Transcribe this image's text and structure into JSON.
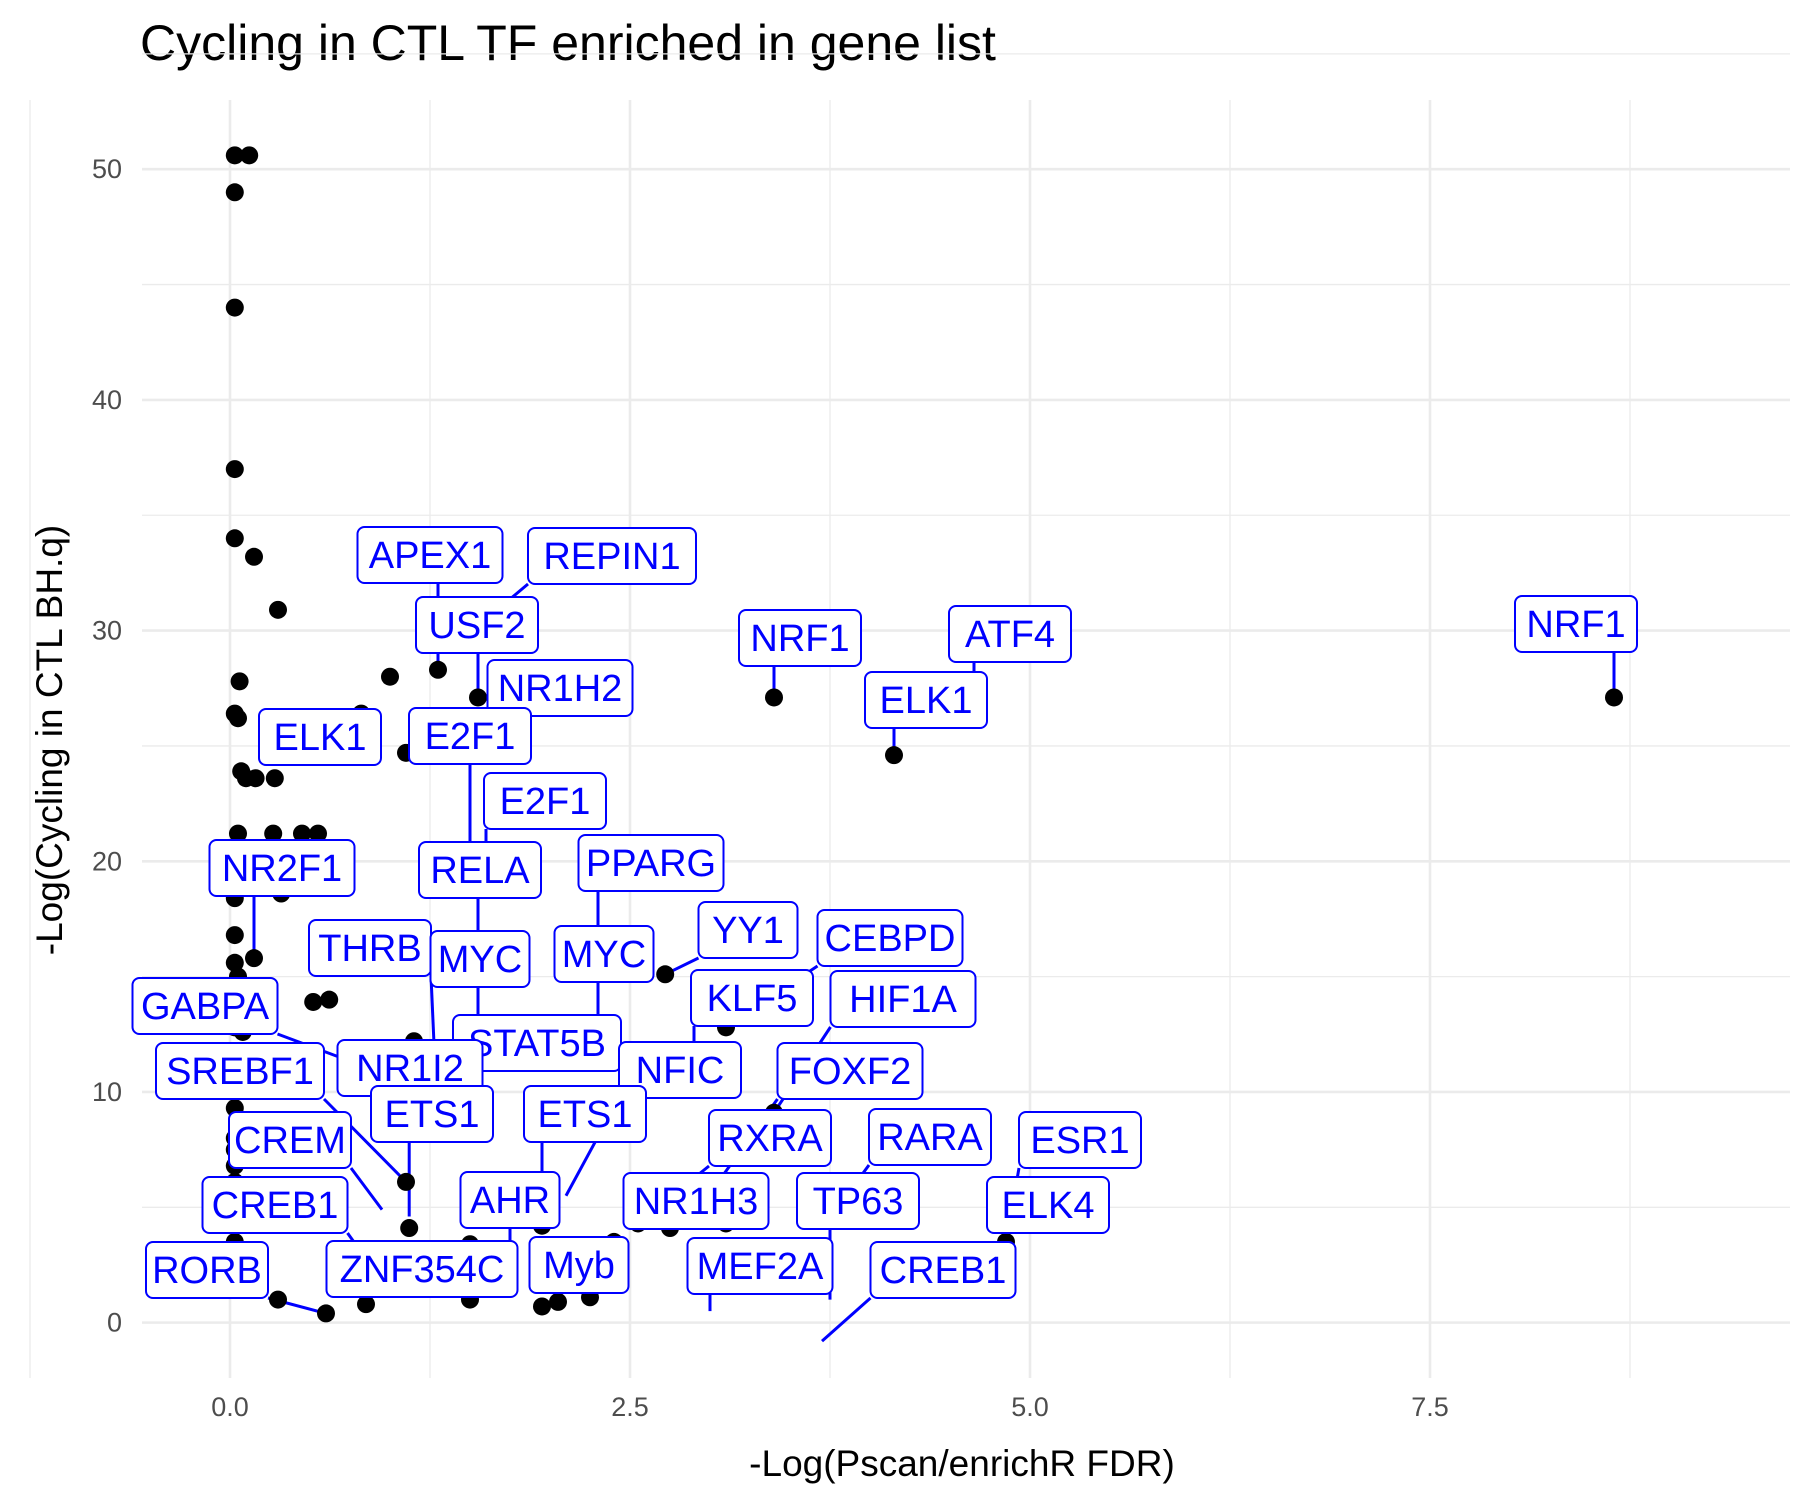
{
  "chart_data": {
    "type": "scatter",
    "title": "Cycling in CTL TF enriched in gene list",
    "xlabel": "-Log(Pscan/enrichR FDR)",
    "ylabel": "-Log(Cycling in CTL BH.q)",
    "xlim": [
      -0.55,
      9.75
    ],
    "ylim": [
      -2.4,
      53
    ],
    "x_ticks": [
      0.0,
      2.5,
      5.0,
      7.5
    ],
    "x_tick_labels": [
      "0.0",
      "2.5",
      "5.0",
      "7.5"
    ],
    "y_ticks": [
      0,
      10,
      20,
      30,
      40,
      50
    ],
    "y_tick_labels": [
      "0",
      "10",
      "20",
      "30",
      "40",
      "50"
    ],
    "grid": true,
    "point_color": "#000000",
    "label_color": "#0000ff",
    "points": [
      [
        0.03,
        50.6
      ],
      [
        0.12,
        50.6
      ],
      [
        0.03,
        49.0
      ],
      [
        0.03,
        44.0
      ],
      [
        0.03,
        37.0
      ],
      [
        0.03,
        34.0
      ],
      [
        0.15,
        33.2
      ],
      [
        0.3,
        30.9
      ],
      [
        0.06,
        27.8
      ],
      [
        0.03,
        26.4
      ],
      [
        0.05,
        26.2
      ],
      [
        0.3,
        24.7
      ],
      [
        0.07,
        23.9
      ],
      [
        0.1,
        23.6
      ],
      [
        0.16,
        23.6
      ],
      [
        0.28,
        23.6
      ],
      [
        0.05,
        21.2
      ],
      [
        0.27,
        21.2
      ],
      [
        0.45,
        21.2
      ],
      [
        0.55,
        21.2
      ],
      [
        0.2,
        20.0
      ],
      [
        0.03,
        20.0
      ],
      [
        0.03,
        19.5
      ],
      [
        0.03,
        19.0
      ],
      [
        0.03,
        18.4
      ],
      [
        0.3,
        19.4
      ],
      [
        0.32,
        18.6
      ],
      [
        0.62,
        20.0
      ],
      [
        0.68,
        19.4
      ],
      [
        0.03,
        16.8
      ],
      [
        0.03,
        15.6
      ],
      [
        0.05,
        15.0
      ],
      [
        0.03,
        14.5
      ],
      [
        0.15,
        15.8
      ],
      [
        0.52,
        13.9
      ],
      [
        0.62,
        14.0
      ],
      [
        0.03,
        13.2
      ],
      [
        0.03,
        12.8
      ],
      [
        0.08,
        12.6
      ],
      [
        0.18,
        13.2
      ],
      [
        0.03,
        9.3
      ],
      [
        0.03,
        8.0
      ],
      [
        0.03,
        7.5
      ],
      [
        0.03,
        6.8
      ],
      [
        0.03,
        6.1
      ],
      [
        0.03,
        5.5
      ],
      [
        0.03,
        5.0
      ],
      [
        0.03,
        4.5
      ],
      [
        0.03,
        3.5
      ],
      [
        0.03,
        3.0
      ],
      [
        0.08,
        2.5
      ],
      [
        0.15,
        2.0
      ],
      [
        0.3,
        1.0
      ],
      [
        0.6,
        0.4
      ],
      [
        0.95,
        1.8
      ],
      [
        0.85,
        0.8
      ],
      [
        1.2,
        1.5
      ],
      [
        0.6,
        26.0
      ],
      [
        0.68,
        24.7
      ],
      [
        0.82,
        26.4
      ],
      [
        1.0,
        28.0
      ],
      [
        1.1,
        24.7
      ],
      [
        1.3,
        28.3
      ],
      [
        1.55,
        30.2
      ],
      [
        1.55,
        27.1
      ],
      [
        1.55,
        25.2
      ],
      [
        1.5,
        20.3
      ],
      [
        1.6,
        20.3
      ],
      [
        1.15,
        12.2
      ],
      [
        1.2,
        11.6
      ],
      [
        1.28,
        11.3
      ],
      [
        1.55,
        11.5
      ],
      [
        1.5,
        10.6
      ],
      [
        1.15,
        10.3
      ],
      [
        1.1,
        6.1
      ],
      [
        1.12,
        4.1
      ],
      [
        1.5,
        3.4
      ],
      [
        1.5,
        1.0
      ],
      [
        1.6,
        2.0
      ],
      [
        1.95,
        4.2
      ],
      [
        1.95,
        0.7
      ],
      [
        2.05,
        0.9
      ],
      [
        2.25,
        1.1
      ],
      [
        2.4,
        3.5
      ],
      [
        2.3,
        11.5
      ],
      [
        2.3,
        16.0
      ],
      [
        2.72,
        15.1
      ],
      [
        2.55,
        4.3
      ],
      [
        2.75,
        4.1
      ],
      [
        2.9,
        10.5
      ],
      [
        3.0,
        5.6
      ],
      [
        3.1,
        4.3
      ],
      [
        3.1,
        12.8
      ],
      [
        3.4,
        9.1
      ],
      [
        3.4,
        27.1
      ],
      [
        4.15,
        24.6
      ],
      [
        4.65,
        27.5
      ],
      [
        4.85,
        3.5
      ],
      [
        4.85,
        2.3
      ],
      [
        8.65,
        27.1
      ]
    ],
    "labels": [
      {
        "text": "APEX1",
        "x": 1.3,
        "y": 28.3
      },
      {
        "text": "REPIN1",
        "x": 1.55,
        "y": 30.2
      },
      {
        "text": "USF2",
        "x": 1.55,
        "y": 27.1
      },
      {
        "text": "NR1H2",
        "x": 1.55,
        "y": 25.2
      },
      {
        "text": "NRF1",
        "x": 3.4,
        "y": 27.1
      },
      {
        "text": "ATF4",
        "x": 4.65,
        "y": 27.5
      },
      {
        "text": "NRF1",
        "x": 8.65,
        "y": 27.1
      },
      {
        "text": "ELK1",
        "x": 4.15,
        "y": 24.6
      },
      {
        "text": "ELK1",
        "x": 0.3,
        "y": 23.6
      },
      {
        "text": "E2F1",
        "x": 1.5,
        "y": 20.3
      },
      {
        "text": "E2F1",
        "x": 1.6,
        "y": 20.3
      },
      {
        "text": "NR2F1",
        "x": 0.15,
        "y": 15.8
      },
      {
        "text": "RELA",
        "x": 1.55,
        "y": 14.5
      },
      {
        "text": "PPARG",
        "x": 2.3,
        "y": 16.0
      },
      {
        "text": "YY1",
        "x": 2.72,
        "y": 15.1
      },
      {
        "text": "CEBPD",
        "x": 3.1,
        "y": 12.8
      },
      {
        "text": "THRB",
        "x": 1.28,
        "y": 11.3
      },
      {
        "text": "MYC",
        "x": 1.55,
        "y": 11.5
      },
      {
        "text": "MYC",
        "x": 2.3,
        "y": 11.5
      },
      {
        "text": "KLF5",
        "x": 2.9,
        "y": 10.5
      },
      {
        "text": "HIF1A",
        "x": 3.4,
        "y": 9.1
      },
      {
        "text": "GABPA",
        "x": 1.15,
        "y": 10.3
      },
      {
        "text": "STAT5B",
        "x": 1.5,
        "y": 10.6
      },
      {
        "text": "NR1I2",
        "x": 1.1,
        "y": 8.5
      },
      {
        "text": "NFIC",
        "x": 2.1,
        "y": 5.5
      },
      {
        "text": "FOXF2",
        "x": 3.0,
        "y": 5.6
      },
      {
        "text": "SREBF1",
        "x": 1.1,
        "y": 6.1
      },
      {
        "text": "ETS1",
        "x": 1.12,
        "y": 4.6
      },
      {
        "text": "ETS1",
        "x": 1.95,
        "y": 4.2
      },
      {
        "text": "RXRA",
        "x": 2.55,
        "y": 4.3
      },
      {
        "text": "RARA",
        "x": 3.8,
        "y": 5.0
      },
      {
        "text": "ESR1",
        "x": 4.85,
        "y": 3.5
      },
      {
        "text": "CREM",
        "x": 0.95,
        "y": 4.9
      },
      {
        "text": "AHR",
        "x": 1.75,
        "y": 2.0
      },
      {
        "text": "NR1H3",
        "x": 2.75,
        "y": 4.1
      },
      {
        "text": "TP63",
        "x": 3.75,
        "y": 1.0
      },
      {
        "text": "ELK4",
        "x": 4.85,
        "y": 2.3
      },
      {
        "text": "CREB1",
        "x": 0.95,
        "y": 1.8
      },
      {
        "text": "RORB",
        "x": 0.6,
        "y": 0.4
      },
      {
        "text": "ZNF354C",
        "x": 1.2,
        "y": 1.5
      },
      {
        "text": "Myb",
        "x": 2.05,
        "y": 0.9
      },
      {
        "text": "MEF2A",
        "x": 3.0,
        "y": 0.5
      },
      {
        "text": "CREB1",
        "x": 3.7,
        "y": -0.8
      }
    ]
  }
}
